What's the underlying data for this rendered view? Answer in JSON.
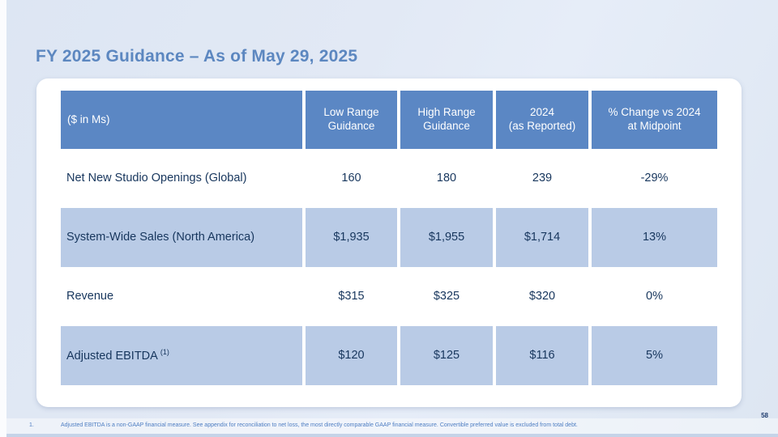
{
  "slide": {
    "title": "FY 2025 Guidance – As of May 29, 2025",
    "page_number": "58"
  },
  "colors": {
    "header_bg": "#5b87c4",
    "highlight_row_bg": "#b9cbe6",
    "title_blue": "#5c87c0",
    "body_text": "#17365d",
    "footnote_blue": "#4d7dc2",
    "slide_bg": "#e0e8f4"
  },
  "table": {
    "unit_label": "($ in Ms)",
    "columns": [
      {
        "line1": "Low Range",
        "line2": "Guidance"
      },
      {
        "line1": "High Range",
        "line2": "Guidance"
      },
      {
        "line1": "2024",
        "line2": "(as Reported)"
      },
      {
        "line1": "% Change vs 2024",
        "line2": "at Midpoint"
      }
    ],
    "rows": [
      {
        "label": "Net New Studio Openings (Global)",
        "sup": "",
        "low": "160",
        "high": "180",
        "reported": "239",
        "change": "-29%"
      },
      {
        "label": "System-Wide Sales (North America)",
        "sup": "",
        "low": "$1,935",
        "high": "$1,955",
        "reported": "$1,714",
        "change": "13%"
      },
      {
        "label": "Revenue",
        "sup": "",
        "low": "$315",
        "high": "$325",
        "reported": "$320",
        "change": "0%"
      },
      {
        "label": "Adjusted EBITDA",
        "sup": "(1)",
        "low": "$120",
        "high": "$125",
        "reported": "$116",
        "change": "5%"
      }
    ]
  },
  "footnote": {
    "number": "1.",
    "text": "Adjusted EBITDA is a non-GAAP financial measure. See appendix for reconciliation to net loss, the most directly comparable GAAP financial measure. Convertible preferred value is excluded from total debt."
  }
}
